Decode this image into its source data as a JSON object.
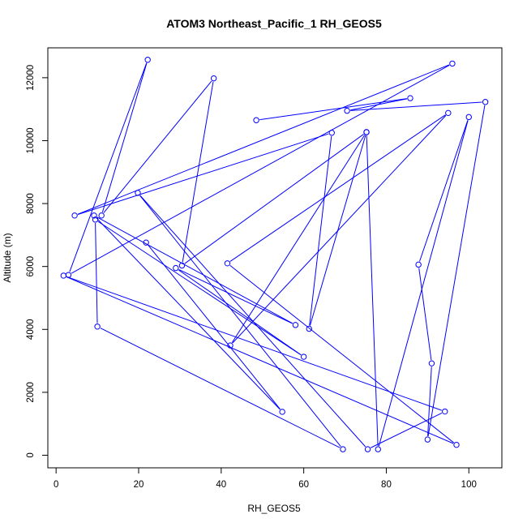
{
  "chart_data": {
    "type": "line",
    "title": "ATOM3 Northeast_Pacific_1 RH_GEOS5",
    "xlabel": "RH_GEOS5",
    "ylabel": "Altitude (m)",
    "xlim": [
      -2,
      108
    ],
    "ylim": [
      -400,
      12950
    ],
    "xticks": [
      0,
      20,
      40,
      60,
      80,
      100
    ],
    "yticks": [
      0,
      2000,
      4000,
      6000,
      8000,
      10000,
      12000
    ],
    "grid": false,
    "color": "#0000ff",
    "series": [
      {
        "x": [
          48.5,
          85.8,
          70.5,
          104.0,
          90.0,
          91.0,
          87.8,
          100.0,
          78.0,
          75.2,
          61.3,
          66.8,
          4.5,
          96.0,
          3.0,
          22.2,
          11.0,
          38.2,
          30.5,
          75.2,
          42.2,
          95.0,
          41.5,
          97.0,
          1.8,
          94.2,
          75.5,
          19.8,
          69.5,
          10.0,
          9.5,
          60.0,
          29.0,
          58.0,
          9.2,
          54.8,
          21.8
        ],
        "y": [
          10650,
          11350,
          10950,
          11230,
          500,
          2920,
          6060,
          10750,
          190,
          10270,
          4020,
          10250,
          7620,
          12450,
          5730,
          12570,
          7620,
          11980,
          6030,
          10270,
          3490,
          10880,
          6100,
          330,
          5710,
          1390,
          190,
          8340,
          190,
          4090,
          7490,
          3130,
          5950,
          4140,
          7620,
          1380,
          6760
        ]
      }
    ]
  }
}
